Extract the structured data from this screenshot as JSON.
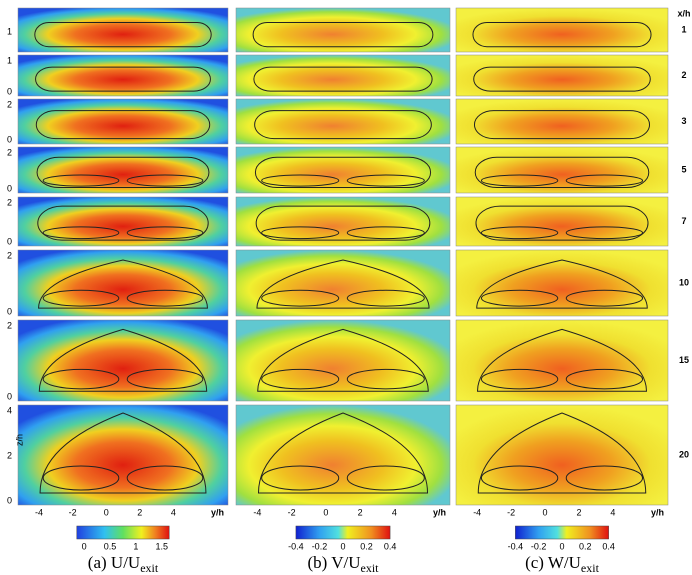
{
  "figure": {
    "header": "x/h",
    "z_label": "z/h",
    "rows": [
      {
        "label": "1",
        "yticks": [
          "1"
        ]
      },
      {
        "label": "2",
        "yticks": [
          "1",
          "0"
        ]
      },
      {
        "label": "3",
        "yticks": [
          "2",
          "0"
        ]
      },
      {
        "label": "5",
        "yticks": [
          "2",
          "0"
        ]
      },
      {
        "label": "7",
        "yticks": [
          "2",
          "0"
        ]
      },
      {
        "label": "10",
        "yticks": [
          "2",
          "0"
        ]
      },
      {
        "label": "15",
        "yticks": [
          "2",
          "0"
        ]
      },
      {
        "label": "20",
        "yticks": [
          "4",
          "2",
          "0"
        ]
      }
    ],
    "columns": [
      {
        "xticks": [
          "-4",
          "-2",
          "0",
          "2",
          "4"
        ],
        "x_label": "y/h",
        "colorbar": [
          "0",
          "0.5",
          "1",
          "1.5"
        ],
        "caption": "(a) U/U",
        "caption_sub": "exit"
      },
      {
        "xticks": [
          "-4",
          "-2",
          "0",
          "2",
          "4"
        ],
        "x_label": "y/h",
        "colorbar": [
          "-0.4",
          "-0.2",
          "0",
          "0.2",
          "0.4"
        ],
        "caption": "(b) V/U",
        "caption_sub": "exit"
      },
      {
        "xticks": [
          "-4",
          "-2",
          "0",
          "2",
          "4"
        ],
        "x_label": "y/h",
        "colorbar": [
          "-0.4",
          "-0.2",
          "0",
          "0.2",
          "0.4"
        ],
        "caption": "(c) W/U",
        "caption_sub": "exit"
      }
    ]
  }
}
